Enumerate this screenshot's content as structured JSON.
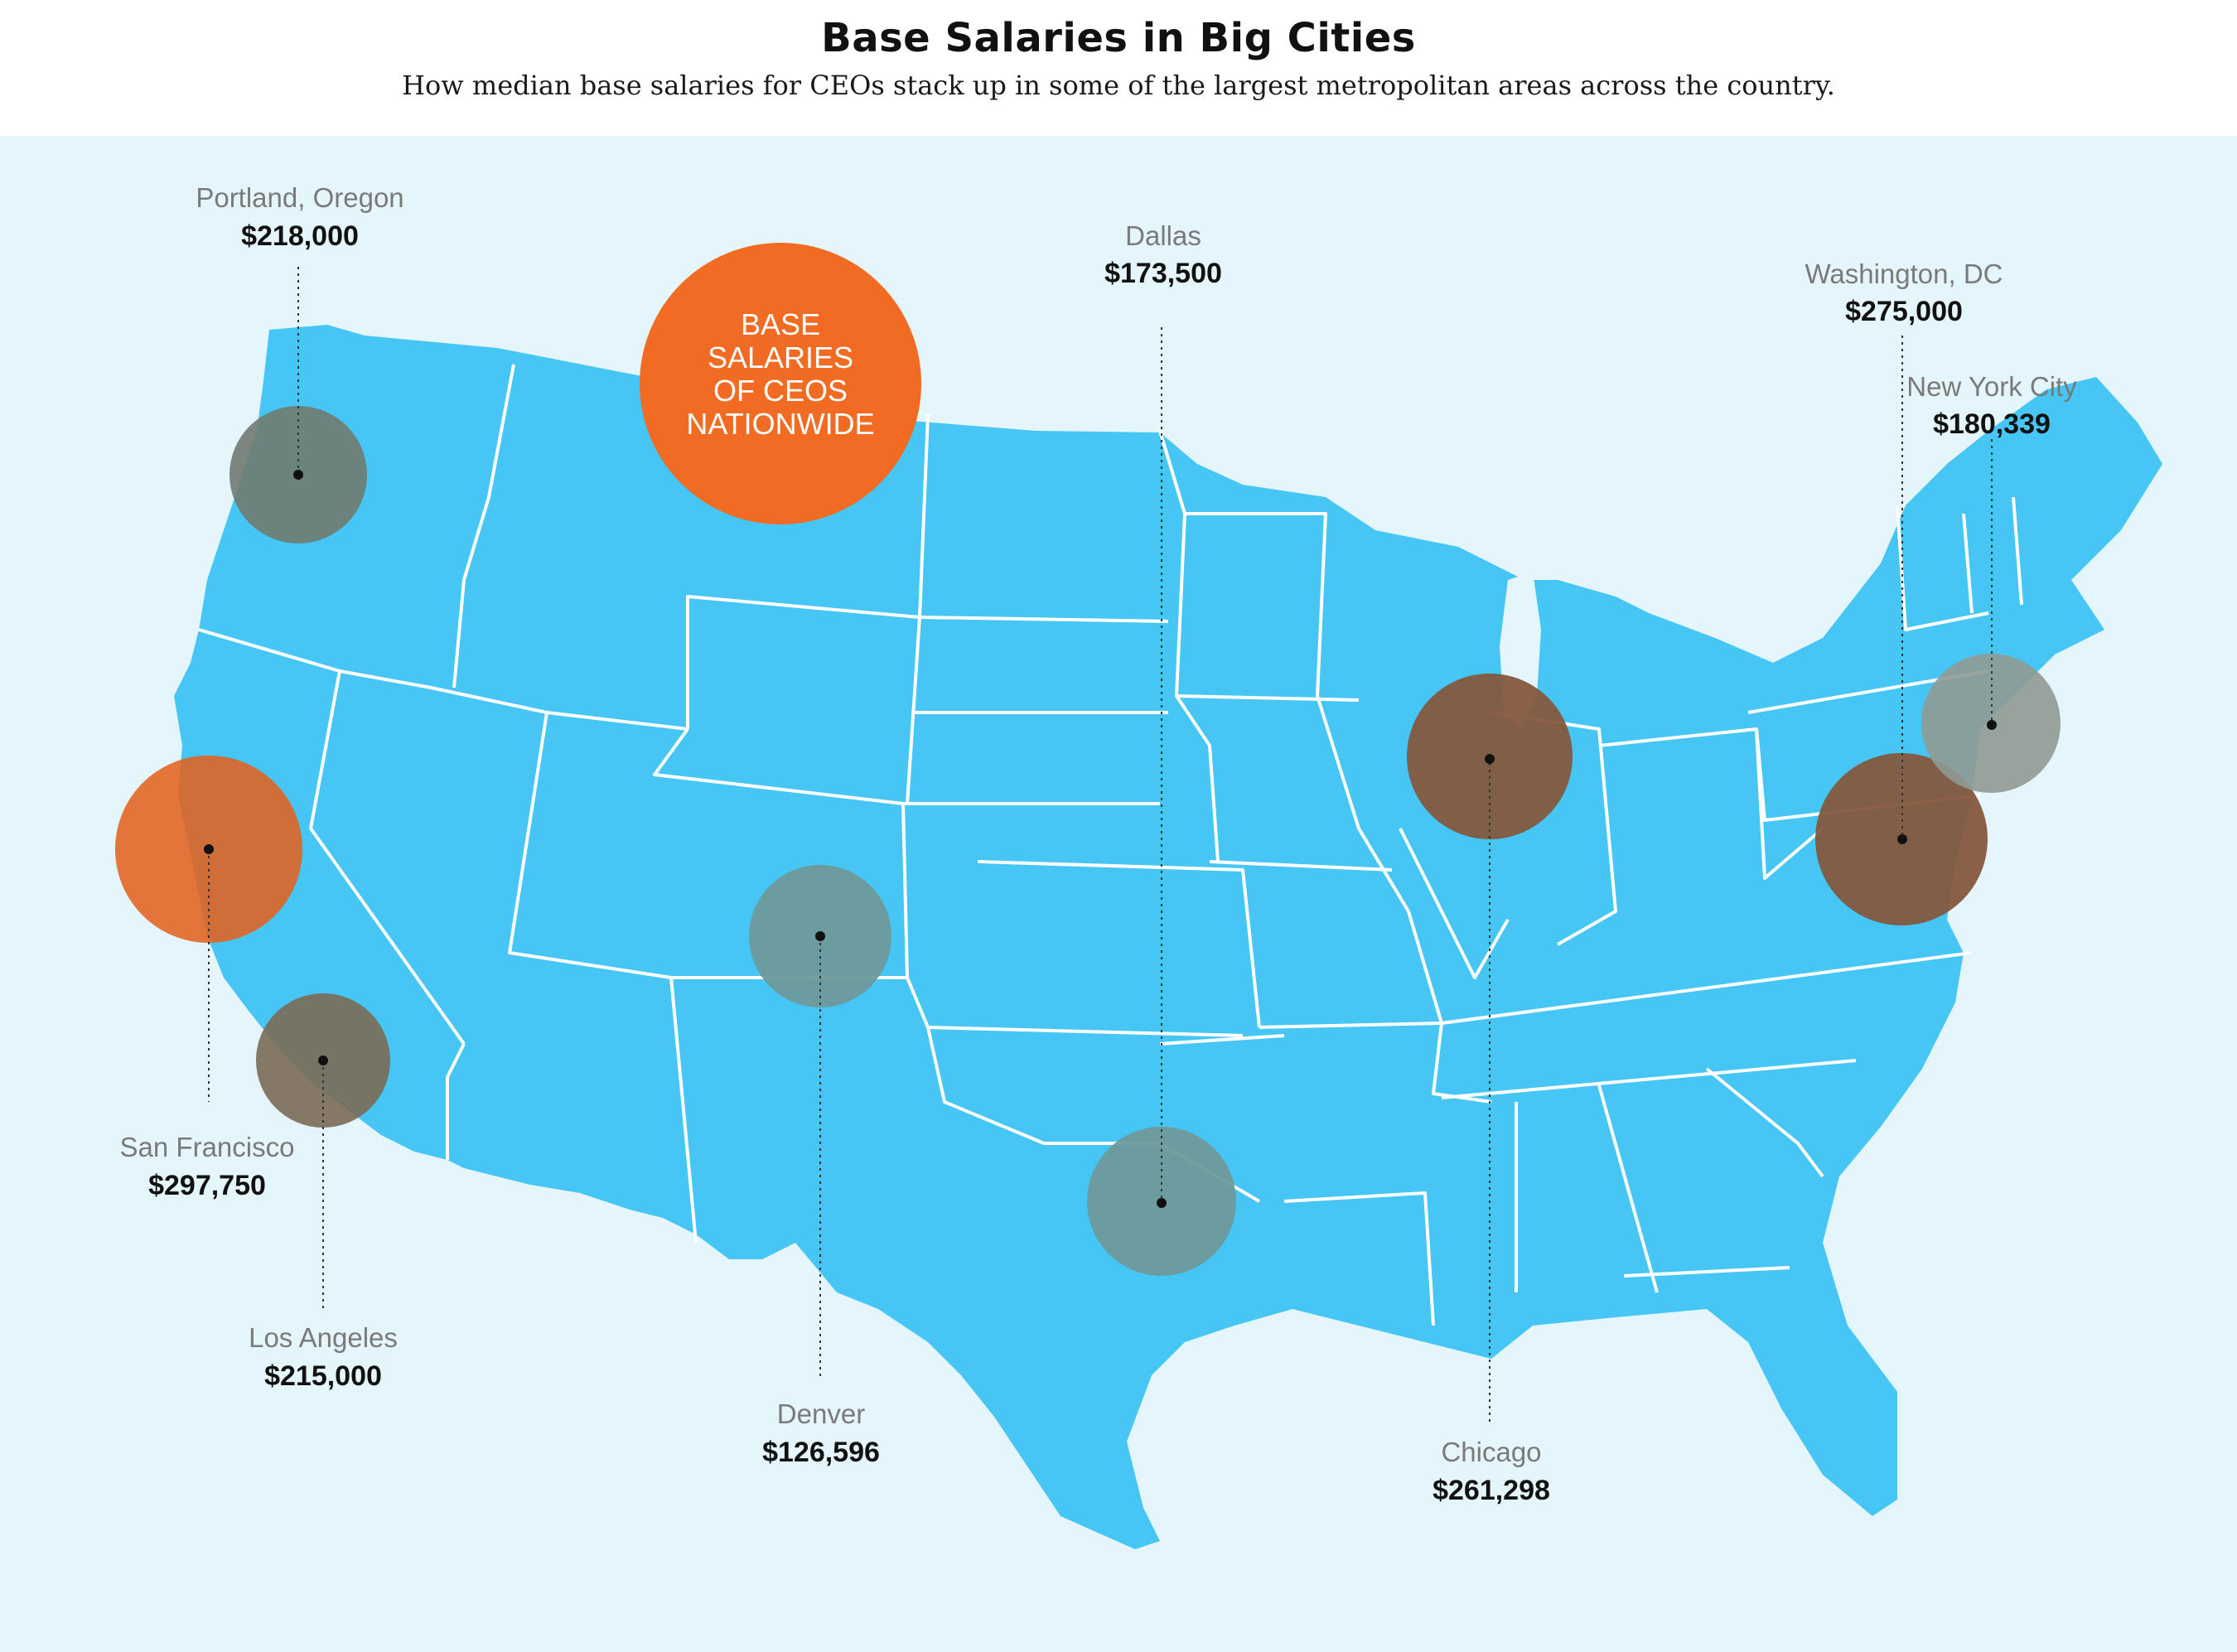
{
  "header": {
    "title": "Base Salaries in Big Cities",
    "subtitle": "How median base salaries for CEOs stack up in some of the largest metropolitan areas across the country."
  },
  "legend": {
    "lines": [
      "BASE",
      "SALARIES",
      "OF CEOS",
      "NATIONWIDE"
    ],
    "color": "#f26b22"
  },
  "colors": {
    "land": "#45c6f4",
    "background": "#e4f5fb",
    "state_border": "#ffffff",
    "bubble_high": "#e2621f",
    "bubble_mid": "#8a5a3e",
    "bubble_gray": "#6f8a88",
    "bubble_light": "#e6a07a"
  },
  "cities": [
    {
      "name": "Portland, Oregon",
      "value": "$218,000"
    },
    {
      "name": "Dallas",
      "value": "$173,500"
    },
    {
      "name": "Washington, DC",
      "value": "$275,000"
    },
    {
      "name": "New York City",
      "value": "$180,339"
    },
    {
      "name": "San Francisco",
      "value": "$297,750"
    },
    {
      "name": "Los Angeles",
      "value": "$215,000"
    },
    {
      "name": "Denver",
      "value": "$126,596"
    },
    {
      "name": "Chicago",
      "value": "$261,298"
    }
  ]
}
